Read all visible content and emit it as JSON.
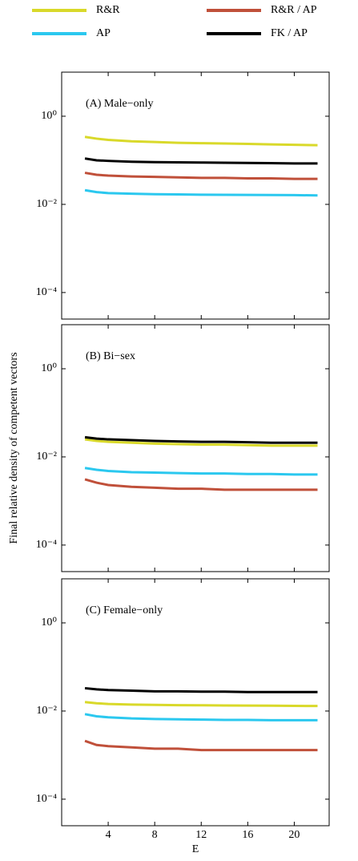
{
  "chart_data": [
    {
      "type": "line",
      "title": "(A) Male−only",
      "log_y": true,
      "x": [
        2,
        3,
        4,
        6,
        8,
        10,
        12,
        14,
        16,
        18,
        20,
        22
      ],
      "xlim": [
        0,
        23
      ],
      "ylim": [
        2.5e-05,
        10
      ],
      "yticks": [
        {
          "value": 1,
          "label": "10⁰"
        },
        {
          "value": 0.01,
          "label": "10⁻²"
        },
        {
          "value": 0.0001,
          "label": "10⁻⁴"
        }
      ],
      "series": [
        {
          "name": "R&R",
          "color": "#d9d92a",
          "values": [
            0.34,
            0.31,
            0.29,
            0.27,
            0.26,
            0.25,
            0.245,
            0.24,
            0.235,
            0.23,
            0.225,
            0.22
          ]
        },
        {
          "name": "R&R / AP",
          "color": "#c0503a",
          "values": [
            0.052,
            0.047,
            0.045,
            0.043,
            0.042,
            0.041,
            0.04,
            0.04,
            0.039,
            0.039,
            0.038,
            0.038
          ]
        },
        {
          "name": "AP",
          "color": "#2bc8ef",
          "values": [
            0.021,
            0.019,
            0.018,
            0.0175,
            0.017,
            0.0168,
            0.0166,
            0.0165,
            0.0164,
            0.0163,
            0.0162,
            0.016
          ]
        },
        {
          "name": "FK / AP",
          "color": "#000000",
          "values": [
            0.11,
            0.1,
            0.097,
            0.093,
            0.091,
            0.09,
            0.089,
            0.088,
            0.087,
            0.086,
            0.085,
            0.085
          ]
        }
      ]
    },
    {
      "type": "line",
      "title": "(B) Bi−sex",
      "log_y": true,
      "ylabel": "Final relative density of competent vectors",
      "x": [
        2,
        3,
        4,
        6,
        8,
        10,
        12,
        14,
        16,
        18,
        20,
        22
      ],
      "xlim": [
        0,
        23
      ],
      "ylim": [
        2.5e-05,
        10
      ],
      "yticks": [
        {
          "value": 1,
          "label": "10⁰"
        },
        {
          "value": 0.01,
          "label": "10⁻²"
        },
        {
          "value": 0.0001,
          "label": "10⁻⁴"
        }
      ],
      "series": [
        {
          "color": "#d9d92a",
          "values": [
            0.025,
            0.023,
            0.022,
            0.021,
            0.02,
            0.0195,
            0.019,
            0.019,
            0.0185,
            0.018,
            0.018,
            0.018
          ]
        },
        {
          "color": "#c0503a",
          "values": [
            0.0031,
            0.0026,
            0.0023,
            0.0021,
            0.002,
            0.0019,
            0.0019,
            0.0018,
            0.0018,
            0.0018,
            0.0018,
            0.0018
          ]
        },
        {
          "color": "#2bc8ef",
          "values": [
            0.0056,
            0.0051,
            0.0048,
            0.0045,
            0.0044,
            0.0043,
            0.0042,
            0.0042,
            0.0041,
            0.0041,
            0.004,
            0.004
          ]
        },
        {
          "color": "#000000",
          "values": [
            0.028,
            0.026,
            0.025,
            0.024,
            0.023,
            0.0225,
            0.022,
            0.022,
            0.0215,
            0.021,
            0.021,
            0.021
          ]
        }
      ]
    },
    {
      "type": "line",
      "title": "(C) Female−only",
      "log_y": true,
      "xlabel": "E",
      "x": [
        2,
        3,
        4,
        6,
        8,
        10,
        12,
        14,
        16,
        18,
        20,
        22
      ],
      "xlim": [
        0,
        23
      ],
      "xticks": [
        4,
        8,
        12,
        16,
        20
      ],
      "ylim": [
        2.5e-05,
        10
      ],
      "yticks": [
        {
          "value": 1,
          "label": "10⁰"
        },
        {
          "value": 0.01,
          "label": "10⁻²"
        },
        {
          "value": 0.0001,
          "label": "10⁻⁴"
        }
      ],
      "series": [
        {
          "color": "#d9d92a",
          "values": [
            0.016,
            0.015,
            0.0145,
            0.014,
            0.0138,
            0.0136,
            0.0135,
            0.0134,
            0.0133,
            0.0132,
            0.0131,
            0.013
          ]
        },
        {
          "color": "#c0503a",
          "values": [
            0.0021,
            0.0017,
            0.0016,
            0.0015,
            0.0014,
            0.0014,
            0.0013,
            0.0013,
            0.0013,
            0.0013,
            0.0013,
            0.0013
          ]
        },
        {
          "color": "#2bc8ef",
          "values": [
            0.0085,
            0.0076,
            0.0072,
            0.0068,
            0.0066,
            0.0065,
            0.0064,
            0.0063,
            0.0063,
            0.0062,
            0.0062,
            0.0062
          ]
        },
        {
          "color": "#000000",
          "values": [
            0.033,
            0.031,
            0.03,
            0.029,
            0.028,
            0.028,
            0.0275,
            0.0275,
            0.027,
            0.027,
            0.027,
            0.027
          ]
        }
      ]
    }
  ]
}
